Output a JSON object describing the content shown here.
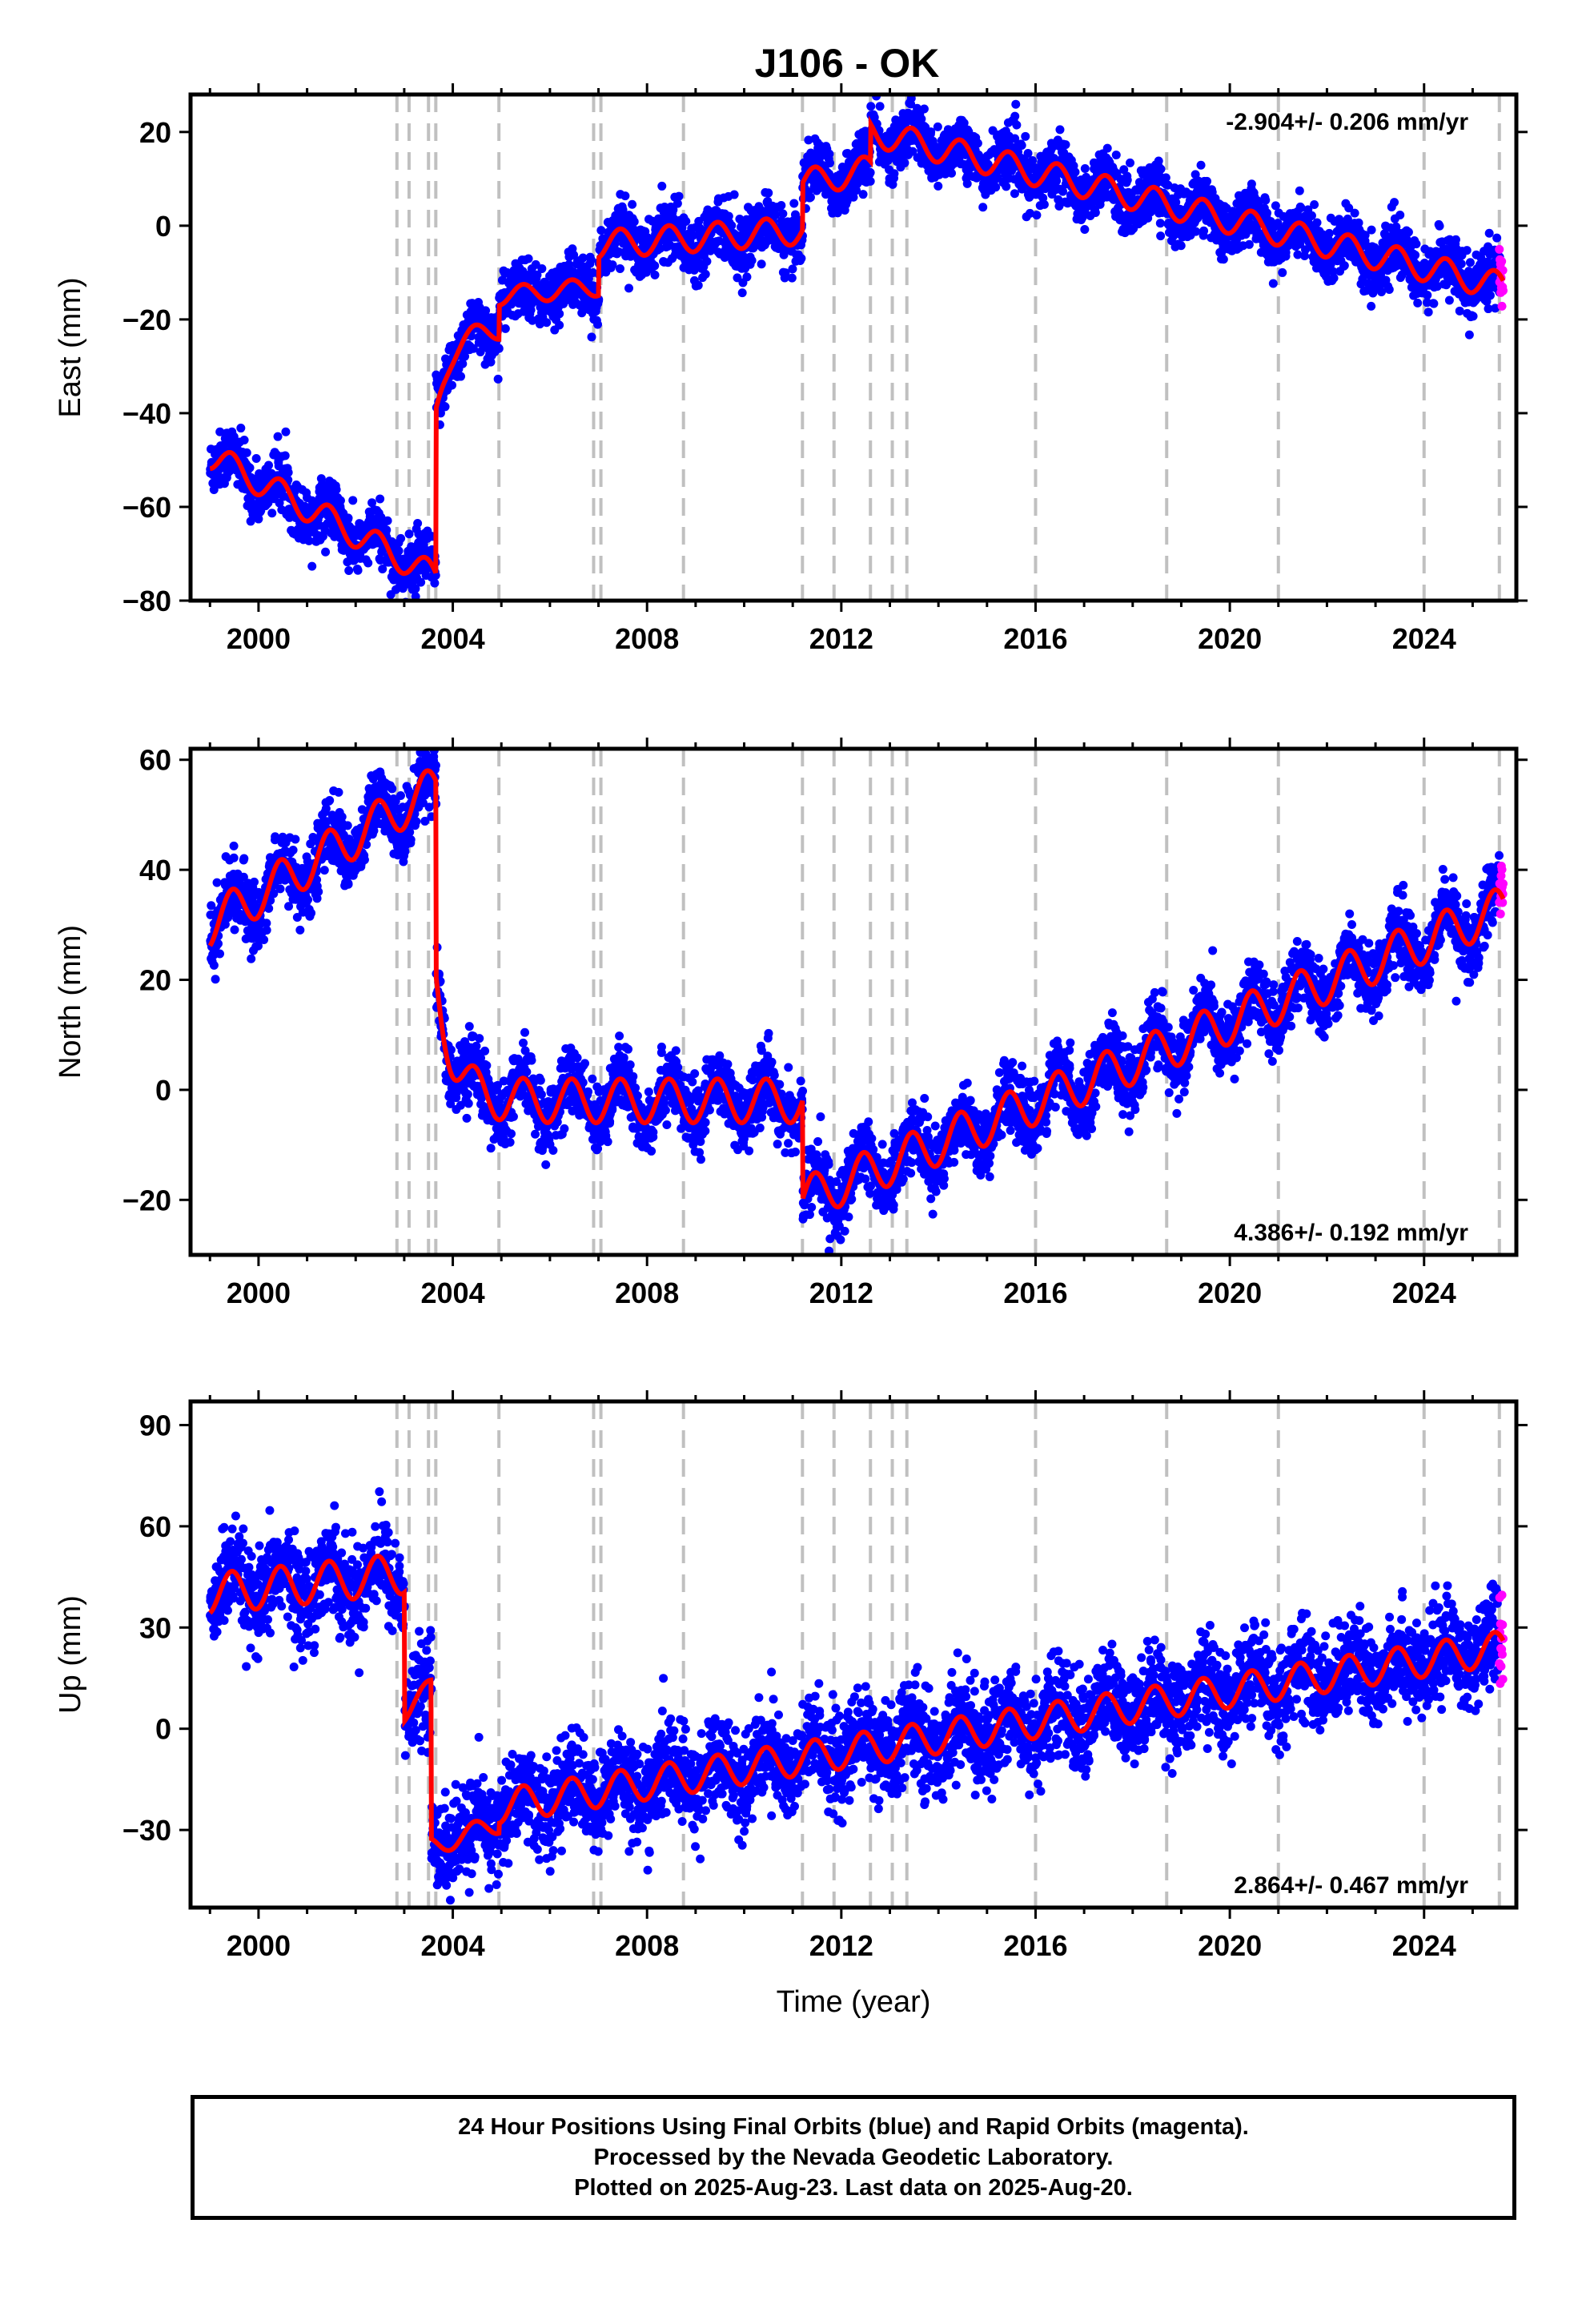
{
  "title": "J106 - OK",
  "caption": {
    "line1": "24 Hour Positions Using Final Orbits (blue) and Rapid Orbits (magenta).",
    "line2": "Processed by the Nevada Geodetic Laboratory.",
    "line3": "Plotted on 2025-Aug-23. Last data on 2025-Aug-20."
  },
  "colors": {
    "final_orbits": "#0000ff",
    "rapid_orbits": "#ff00ff",
    "model": "#ff0000",
    "event_lines": "#c0c0c0"
  },
  "chart_data": [
    {
      "type": "scatter",
      "name": "east",
      "ylabel": "East (mm)",
      "xlabel": "",
      "xlim": [
        1998.6,
        2025.9
      ],
      "ylim": [
        -80,
        28
      ],
      "xticks": [
        2000,
        2004,
        2008,
        2012,
        2016,
        2020,
        2024
      ],
      "yticks": [
        -80,
        -60,
        -40,
        -20,
        0,
        20
      ],
      "rate": "-2.904+/- 0.206 mm/yr",
      "rate_position": "top-right",
      "final_scatter": 3.0,
      "rapid_range": [
        2025.55,
        2025.63
      ],
      "model": {
        "segments": [
          {
            "x0": 1999.0,
            "x1": 2003.65,
            "y0": -49,
            "y1": -75,
            "amp": 3
          },
          {
            "x0": 2003.65,
            "x1": 2004.95,
            "y0": -40,
            "y1": -22,
            "amp": 2,
            "decay": true
          },
          {
            "x0": 2004.95,
            "x1": 2007.0,
            "y0": -15,
            "y1": -13,
            "amp": 2
          },
          {
            "x0": 2007.0,
            "x1": 2011.2,
            "y0": -4,
            "y1": -1,
            "amp": 3
          },
          {
            "x0": 2011.2,
            "x1": 2012.6,
            "y0": 9,
            "y1": 12,
            "amp": 3
          },
          {
            "x0": 2012.6,
            "x1": 2025.63,
            "y0": 20,
            "y1": -13,
            "amp": 3
          }
        ]
      }
    },
    {
      "type": "scatter",
      "name": "north",
      "ylabel": "North (mm)",
      "xlabel": "",
      "xlim": [
        1998.6,
        2025.9
      ],
      "ylim": [
        -30,
        62
      ],
      "xticks": [
        2000,
        2004,
        2008,
        2012,
        2016,
        2020,
        2024
      ],
      "yticks": [
        -20,
        0,
        20,
        40,
        60
      ],
      "rate": "4.386+/- 0.192 mm/yr",
      "rate_position": "bottom-right",
      "final_scatter": 3.0,
      "rapid_range": [
        2025.55,
        2025.63
      ],
      "model": {
        "segments": [
          {
            "x0": 1999.0,
            "x1": 2003.65,
            "y0": 30,
            "y1": 55,
            "amp": 4
          },
          {
            "x0": 2003.65,
            "x1": 2011.2,
            "y0": -2,
            "y1": 2,
            "amp": 4,
            "decay": true,
            "decay_amp": 22
          },
          {
            "x0": 2011.2,
            "x1": 2025.63,
            "y0": -20,
            "y1": 33,
            "amp": 4
          }
        ]
      }
    },
    {
      "type": "scatter",
      "name": "up",
      "ylabel": "Up (mm)",
      "xlabel": "Time (year)",
      "xlim": [
        1998.6,
        2025.9
      ],
      "ylim": [
        -53,
        97
      ],
      "xticks": [
        2000,
        2004,
        2008,
        2012,
        2016,
        2020,
        2024
      ],
      "yticks": [
        -30,
        0,
        30,
        60,
        90
      ],
      "rate": "2.864+/- 0.467 mm/yr",
      "rate_position": "bottom-right",
      "final_scatter": 7.0,
      "rapid_range": [
        2025.55,
        2025.63
      ],
      "model": {
        "segments": [
          {
            "x0": 1999.0,
            "x1": 2003.0,
            "y0": 40,
            "y1": 46,
            "amp": 6
          },
          {
            "x0": 2003.0,
            "x1": 2003.55,
            "y0": 5,
            "y1": 12,
            "amp": 3
          },
          {
            "x0": 2003.55,
            "x1": 2004.95,
            "y0": -35,
            "y1": -28,
            "amp": 3
          },
          {
            "x0": 2004.95,
            "x1": 2025.63,
            "y0": -23,
            "y1": 24,
            "amp": 5
          }
        ]
      }
    }
  ],
  "event_lines": [
    2002.85,
    2003.1,
    2003.5,
    2003.65,
    2004.95,
    2006.9,
    2007.05,
    2008.75,
    2011.2,
    2011.85,
    2012.6,
    2013.05,
    2013.35,
    2016.0,
    2018.7,
    2021.0,
    2024.0,
    2025.55
  ]
}
